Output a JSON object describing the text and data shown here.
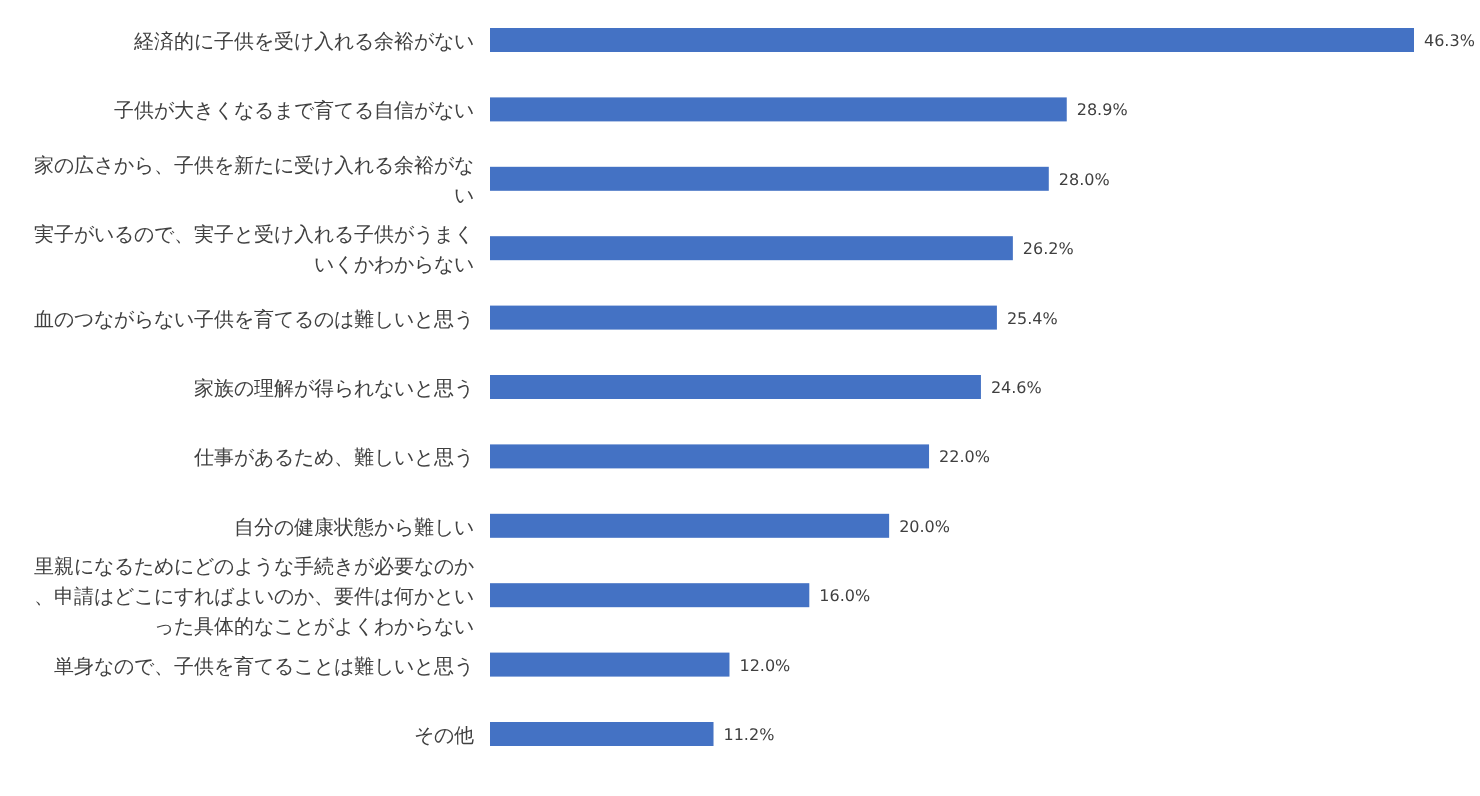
{
  "chart_data": {
    "type": "bar",
    "orientation": "horizontal",
    "categories": [
      "経済的に子供を受け入れる余裕がない",
      "子供が大きくなるまで育てる自信がない",
      "家の広さから、子供を新たに受け入れる余裕がない",
      "実子がいるので、実子と受け入れる子供がうまくいくかわからない",
      "血のつながらない子供を育てるのは難しいと思う",
      "家族の理解が得られないと思う",
      "仕事があるため、難しいと思う",
      "自分の健康状態から難しい",
      "里親になるためにどのような手続きが必要なのか、申請はどこにすればよいのか、要件は何かといった具体的なことがよくわからない",
      "単身なので、子供を育てることは難しいと思う",
      "その他"
    ],
    "values": [
      46.3,
      28.9,
      28.0,
      26.2,
      25.4,
      24.6,
      22.0,
      20.0,
      16.0,
      12.0,
      11.2
    ],
    "value_labels": [
      "46.3%",
      "28.9%",
      "28.0%",
      "26.2%",
      "25.4%",
      "24.6%",
      "22.0%",
      "20.0%",
      "16.0%",
      "12.0%",
      "11.2%"
    ],
    "color": "#4472c4",
    "grid": false,
    "legend": false
  }
}
